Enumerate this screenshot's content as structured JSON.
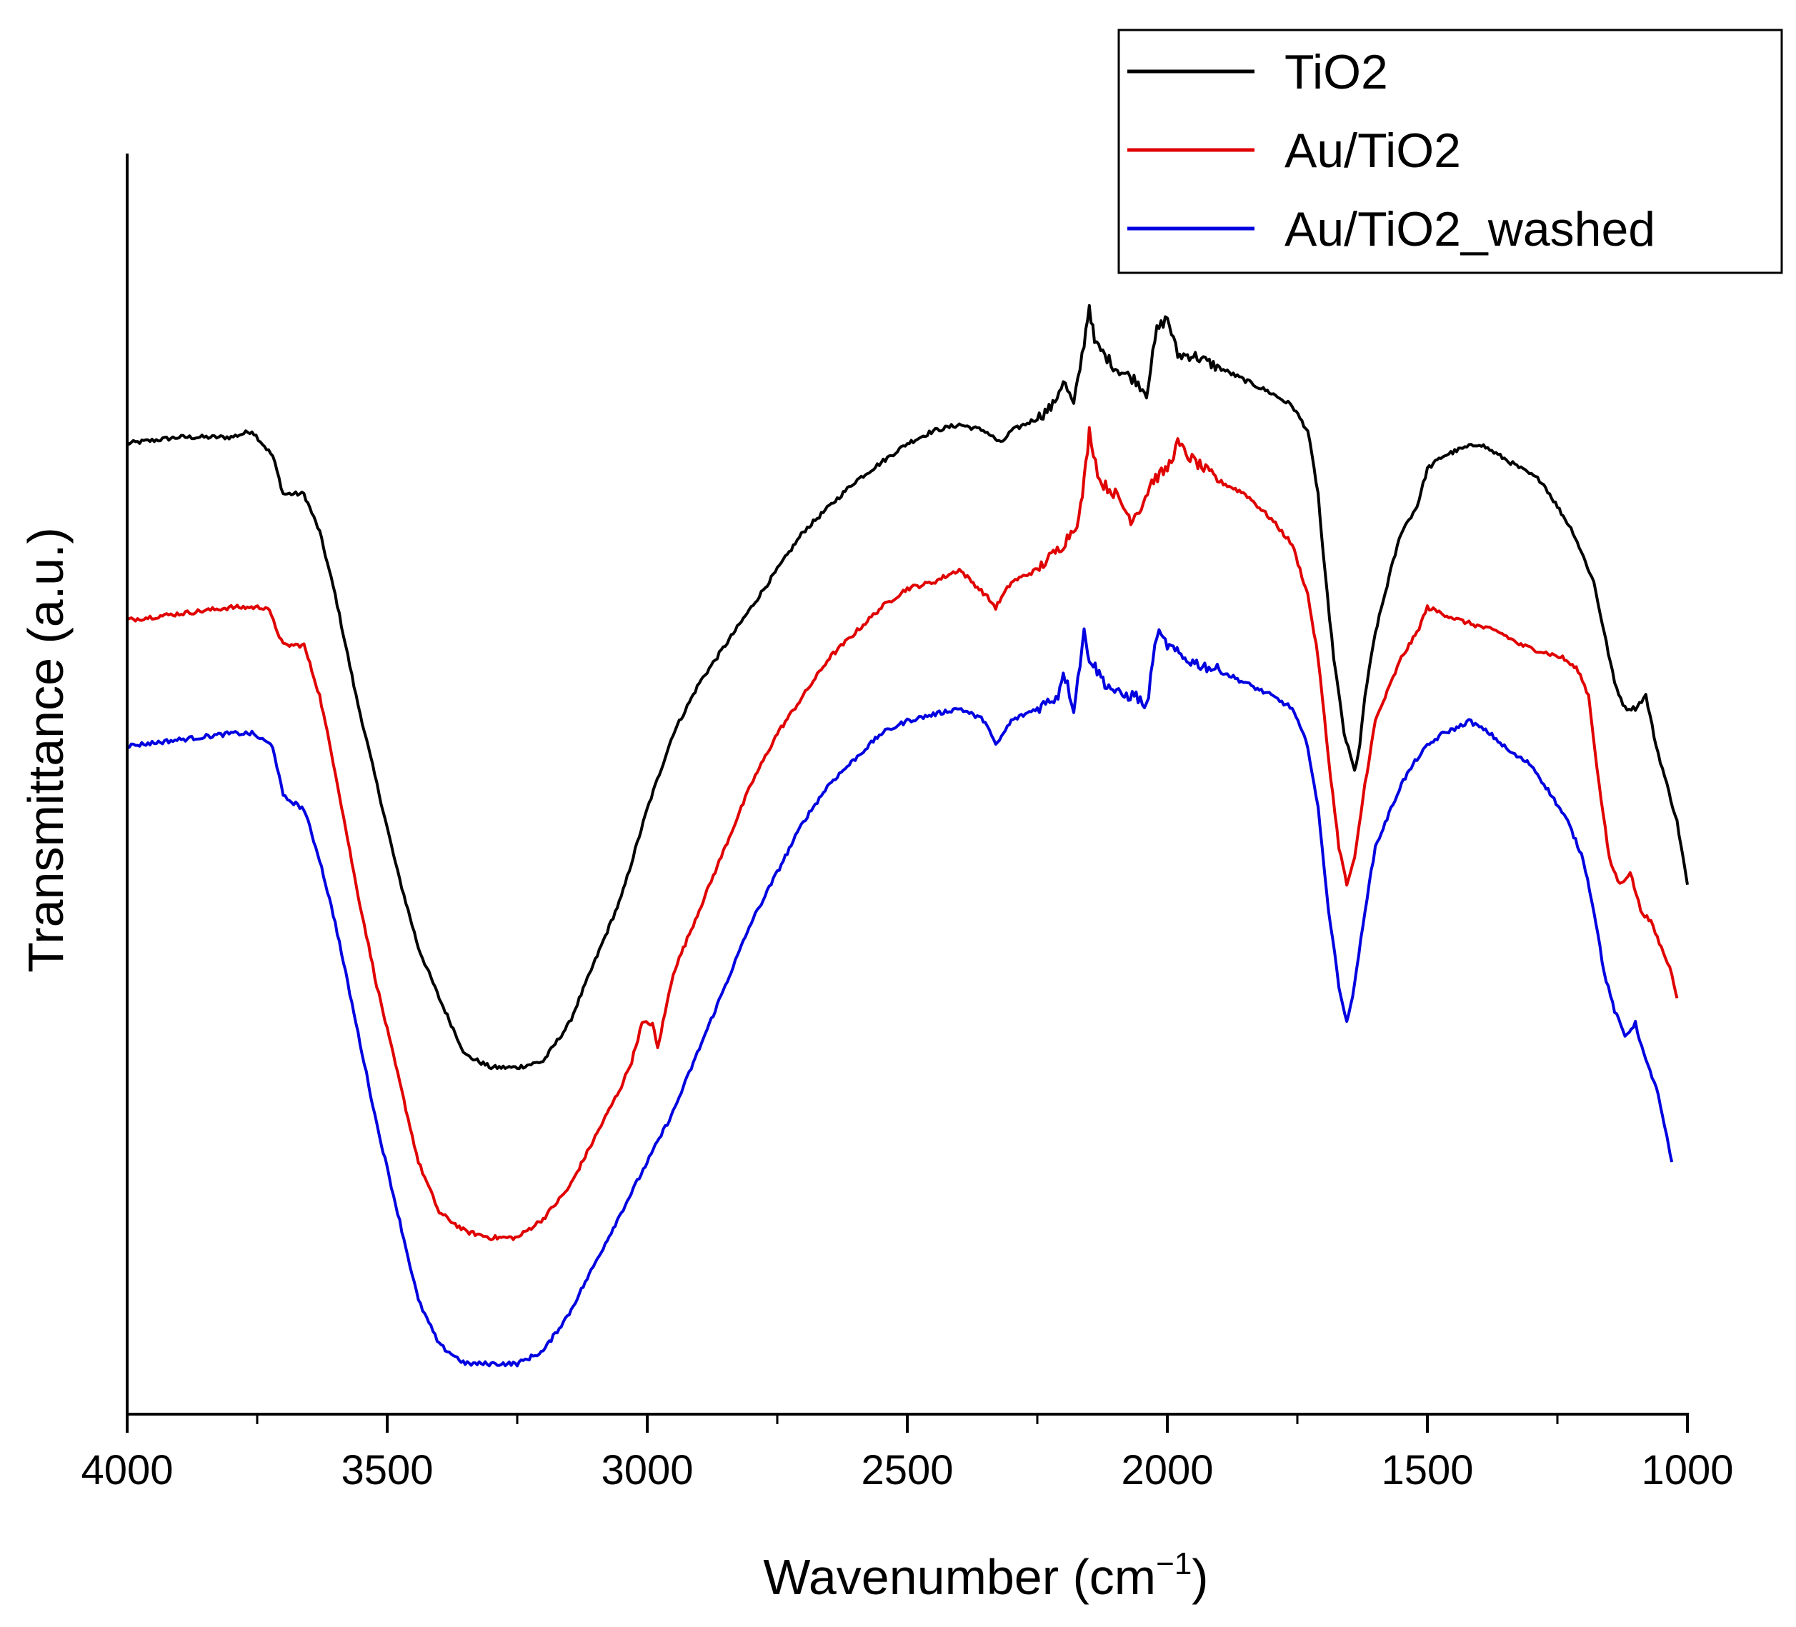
{
  "chart_data": {
    "type": "line",
    "title": "",
    "xlabel": "Wavenumber (cm",
    "xlabel_superscript": "−1",
    "xlabel_close": ")",
    "ylabel": "Transmittance (a.u.)",
    "xlim": [
      4000,
      1000
    ],
    "ylim": [
      0,
      100
    ],
    "x_reversed": true,
    "x_ticks": [
      4000,
      3500,
      3000,
      2500,
      2000,
      1500,
      1000
    ],
    "x_tick_labels": [
      "4000",
      "3500",
      "3000",
      "2500",
      "2000",
      "1500",
      "1000"
    ],
    "y_tick_labels": [],
    "grid": false,
    "legend_position": "top-right",
    "series": [
      {
        "name": "TiO2",
        "color": "#000000",
        "points": [
          [
            4000,
            77
          ],
          [
            3900,
            77.5
          ],
          [
            3800,
            77.5
          ],
          [
            3760,
            78
          ],
          [
            3720,
            76
          ],
          [
            3700,
            73
          ],
          [
            3660,
            73
          ],
          [
            3630,
            70
          ],
          [
            3600,
            65
          ],
          [
            3560,
            57
          ],
          [
            3520,
            50
          ],
          [
            3480,
            43
          ],
          [
            3440,
            37
          ],
          [
            3400,
            33
          ],
          [
            3350,
            28.5
          ],
          [
            3300,
            27.5
          ],
          [
            3250,
            27.5
          ],
          [
            3200,
            28
          ],
          [
            3150,
            31
          ],
          [
            3100,
            36
          ],
          [
            3050,
            41
          ],
          [
            3000,
            48
          ],
          [
            2950,
            54
          ],
          [
            2900,
            58
          ],
          [
            2850,
            61
          ],
          [
            2800,
            64
          ],
          [
            2750,
            67
          ],
          [
            2700,
            70
          ],
          [
            2650,
            72
          ],
          [
            2600,
            74
          ],
          [
            2550,
            75.5
          ],
          [
            2500,
            77
          ],
          [
            2450,
            78
          ],
          [
            2400,
            78.5
          ],
          [
            2350,
            78
          ],
          [
            2320,
            77
          ],
          [
            2300,
            78
          ],
          [
            2250,
            79
          ],
          [
            2220,
            80
          ],
          [
            2200,
            82
          ],
          [
            2180,
            80
          ],
          [
            2160,
            85
          ],
          [
            2150,
            88
          ],
          [
            2140,
            85
          ],
          [
            2100,
            83
          ],
          [
            2060,
            82
          ],
          [
            2040,
            81
          ],
          [
            2020,
            86
          ],
          [
            2000,
            87
          ],
          [
            1980,
            84
          ],
          [
            1950,
            84
          ],
          [
            1900,
            83
          ],
          [
            1850,
            82
          ],
          [
            1800,
            81
          ],
          [
            1760,
            80
          ],
          [
            1730,
            78
          ],
          [
            1710,
            73
          ],
          [
            1700,
            68
          ],
          [
            1680,
            60
          ],
          [
            1660,
            54
          ],
          [
            1640,
            51
          ],
          [
            1630,
            53
          ],
          [
            1620,
            57
          ],
          [
            1600,
            62
          ],
          [
            1570,
            67
          ],
          [
            1550,
            70
          ],
          [
            1520,
            72
          ],
          [
            1500,
            75
          ],
          [
            1470,
            76
          ],
          [
            1440,
            76.5
          ],
          [
            1400,
            77
          ],
          [
            1360,
            76
          ],
          [
            1320,
            75
          ],
          [
            1280,
            74
          ],
          [
            1250,
            72
          ],
          [
            1220,
            70
          ],
          [
            1200,
            68
          ],
          [
            1180,
            66
          ],
          [
            1160,
            62
          ],
          [
            1140,
            58
          ],
          [
            1120,
            56
          ],
          [
            1100,
            56
          ],
          [
            1080,
            57
          ],
          [
            1060,
            53
          ],
          [
            1040,
            50
          ],
          [
            1020,
            47
          ],
          [
            1000,
            42
          ]
        ]
      },
      {
        "name": "Au/TiO2",
        "color": "#e00000",
        "points": [
          [
            4000,
            63
          ],
          [
            3900,
            63.5
          ],
          [
            3800,
            64
          ],
          [
            3730,
            64
          ],
          [
            3700,
            61
          ],
          [
            3660,
            61
          ],
          [
            3630,
            57
          ],
          [
            3600,
            51
          ],
          [
            3560,
            42
          ],
          [
            3520,
            34
          ],
          [
            3480,
            27
          ],
          [
            3440,
            20
          ],
          [
            3400,
            16
          ],
          [
            3350,
            14.5
          ],
          [
            3300,
            14
          ],
          [
            3250,
            14
          ],
          [
            3200,
            15.5
          ],
          [
            3150,
            18
          ],
          [
            3100,
            22
          ],
          [
            3050,
            26
          ],
          [
            3030,
            28
          ],
          [
            3010,
            31
          ],
          [
            2990,
            31
          ],
          [
            2980,
            29
          ],
          [
            2970,
            31
          ],
          [
            2950,
            35
          ],
          [
            2900,
            40
          ],
          [
            2850,
            45
          ],
          [
            2800,
            50
          ],
          [
            2750,
            54
          ],
          [
            2700,
            57
          ],
          [
            2650,
            60
          ],
          [
            2600,
            62
          ],
          [
            2550,
            64
          ],
          [
            2500,
            65.5
          ],
          [
            2450,
            66
          ],
          [
            2400,
            67
          ],
          [
            2350,
            65
          ],
          [
            2330,
            64
          ],
          [
            2300,
            66
          ],
          [
            2250,
            67
          ],
          [
            2200,
            69
          ],
          [
            2170,
            71
          ],
          [
            2160,
            74
          ],
          [
            2150,
            78
          ],
          [
            2130,
            74
          ],
          [
            2100,
            73
          ],
          [
            2070,
            71
          ],
          [
            2050,
            72
          ],
          [
            2030,
            74
          ],
          [
            2000,
            75
          ],
          [
            1980,
            77
          ],
          [
            1960,
            76
          ],
          [
            1930,
            75
          ],
          [
            1900,
            74
          ],
          [
            1850,
            73
          ],
          [
            1800,
            71
          ],
          [
            1760,
            69
          ],
          [
            1730,
            65
          ],
          [
            1710,
            60
          ],
          [
            1690,
            52
          ],
          [
            1670,
            45
          ],
          [
            1655,
            42
          ],
          [
            1640,
            44
          ],
          [
            1620,
            50
          ],
          [
            1600,
            55
          ],
          [
            1570,
            58
          ],
          [
            1550,
            60
          ],
          [
            1520,
            62
          ],
          [
            1500,
            64
          ],
          [
            1470,
            63.5
          ],
          [
            1440,
            63
          ],
          [
            1400,
            62.5
          ],
          [
            1360,
            62
          ],
          [
            1320,
            61
          ],
          [
            1280,
            60.5
          ],
          [
            1240,
            60
          ],
          [
            1210,
            59
          ],
          [
            1190,
            57
          ],
          [
            1170,
            50
          ],
          [
            1150,
            44
          ],
          [
            1130,
            42
          ],
          [
            1110,
            43
          ],
          [
            1090,
            40
          ],
          [
            1070,
            39
          ],
          [
            1050,
            37
          ],
          [
            1030,
            35
          ],
          [
            1020,
            33
          ]
        ]
      },
      {
        "name": "Au/TiO2_washed",
        "color": "#0000e0",
        "points": [
          [
            4000,
            53
          ],
          [
            3900,
            53.5
          ],
          [
            3800,
            54
          ],
          [
            3760,
            54
          ],
          [
            3720,
            53
          ],
          [
            3700,
            49
          ],
          [
            3660,
            48
          ],
          [
            3630,
            44
          ],
          [
            3600,
            39
          ],
          [
            3560,
            31
          ],
          [
            3520,
            23
          ],
          [
            3480,
            16
          ],
          [
            3440,
            9
          ],
          [
            3400,
            5.5
          ],
          [
            3350,
            4
          ],
          [
            3300,
            4
          ],
          [
            3250,
            4
          ],
          [
            3200,
            5
          ],
          [
            3150,
            8
          ],
          [
            3100,
            12
          ],
          [
            3050,
            16
          ],
          [
            3000,
            20
          ],
          [
            2950,
            24
          ],
          [
            2900,
            29
          ],
          [
            2850,
            34
          ],
          [
            2800,
            39
          ],
          [
            2750,
            43
          ],
          [
            2700,
            47
          ],
          [
            2650,
            50
          ],
          [
            2600,
            52
          ],
          [
            2550,
            54
          ],
          [
            2500,
            55
          ],
          [
            2450,
            55.5
          ],
          [
            2400,
            56
          ],
          [
            2350,
            55
          ],
          [
            2330,
            53
          ],
          [
            2300,
            55
          ],
          [
            2250,
            56
          ],
          [
            2210,
            57
          ],
          [
            2200,
            59
          ],
          [
            2180,
            56
          ],
          [
            2160,
            62
          ],
          [
            2150,
            60
          ],
          [
            2120,
            58
          ],
          [
            2090,
            57
          ],
          [
            2060,
            57
          ],
          [
            2040,
            56
          ],
          [
            2020,
            62
          ],
          [
            2000,
            61
          ],
          [
            1970,
            60
          ],
          [
            1940,
            59.5
          ],
          [
            1900,
            59
          ],
          [
            1850,
            58
          ],
          [
            1800,
            57
          ],
          [
            1760,
            56
          ],
          [
            1730,
            53
          ],
          [
            1710,
            48
          ],
          [
            1690,
            40
          ],
          [
            1670,
            34
          ],
          [
            1655,
            31
          ],
          [
            1640,
            34
          ],
          [
            1620,
            40
          ],
          [
            1600,
            45
          ],
          [
            1570,
            48
          ],
          [
            1550,
            50
          ],
          [
            1520,
            52
          ],
          [
            1500,
            53
          ],
          [
            1470,
            54
          ],
          [
            1440,
            54.5
          ],
          [
            1420,
            55
          ],
          [
            1380,
            54
          ],
          [
            1340,
            52.5
          ],
          [
            1300,
            51.5
          ],
          [
            1260,
            49
          ],
          [
            1230,
            47
          ],
          [
            1200,
            44
          ],
          [
            1180,
            40
          ],
          [
            1160,
            35
          ],
          [
            1140,
            32
          ],
          [
            1120,
            30
          ],
          [
            1100,
            31
          ],
          [
            1080,
            28
          ],
          [
            1060,
            26
          ],
          [
            1040,
            22
          ],
          [
            1030,
            20
          ]
        ]
      }
    ]
  }
}
